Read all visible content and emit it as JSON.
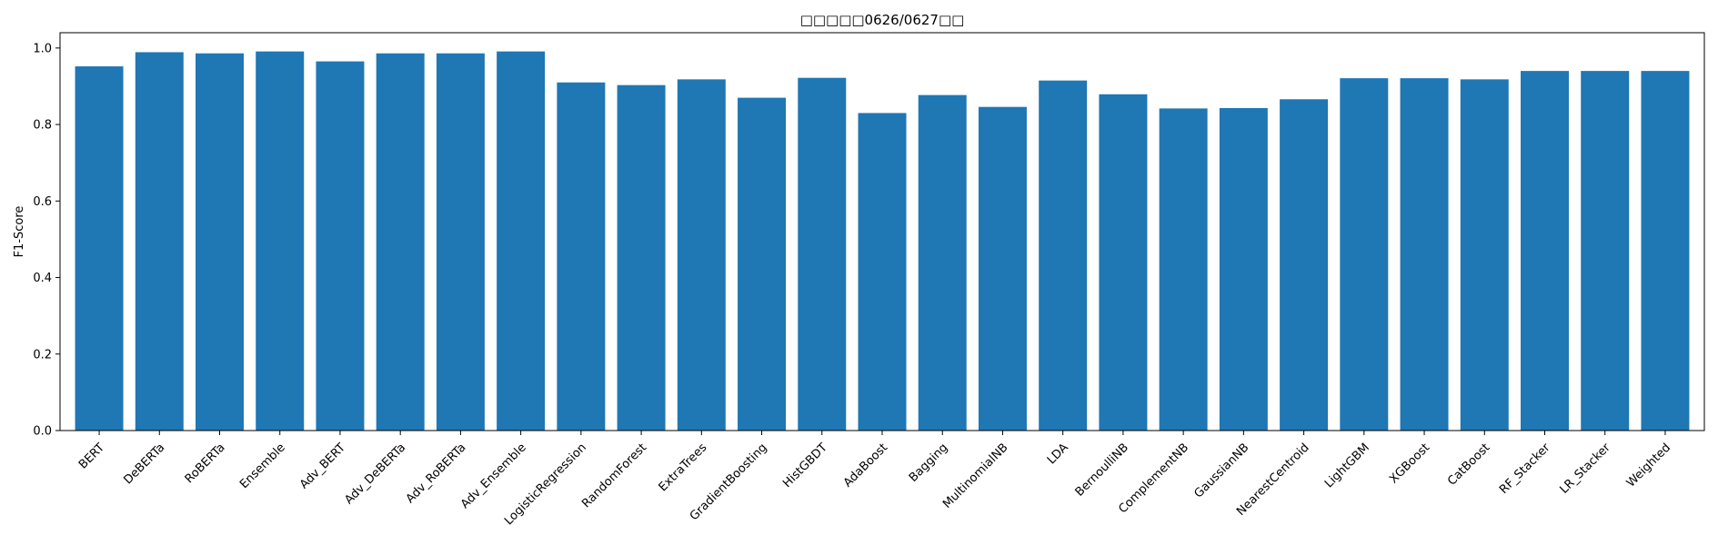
{
  "chart_data": {
    "type": "bar",
    "title": "□□□□□0626/0627□□",
    "xlabel": "",
    "ylabel": "F1-Score",
    "ylim": [
      0,
      1.04
    ],
    "yticks": [
      0.0,
      0.2,
      0.4,
      0.6,
      0.8,
      1.0
    ],
    "ytick_labels": [
      "0.0",
      "0.2",
      "0.4",
      "0.6",
      "0.8",
      "1.0"
    ],
    "grid": false,
    "bar_color": "#1f77b4",
    "categories": [
      "BERT",
      "DeBERTa",
      "RoBERTa",
      "Ensemble",
      "Adv_BERT",
      "Adv_DeBERTa",
      "Adv_RoBERTa",
      "Adv_Ensemble",
      "LogisticRegression",
      "RandomForest",
      "ExtraTrees",
      "GradientBoosting",
      "HistGBDT",
      "AdaBoost",
      "Bagging",
      "MultinomialNB",
      "LDA",
      "BernoulliNB",
      "ComplementNB",
      "GaussianNB",
      "NearestCentroid",
      "LightGBM",
      "XGBoost",
      "CatBoost",
      "RF_Stacker",
      "LR_Stacker",
      "Weighted"
    ],
    "values": [
      0.952,
      0.989,
      0.986,
      0.991,
      0.965,
      0.986,
      0.986,
      0.991,
      0.91,
      0.903,
      0.918,
      0.87,
      0.922,
      0.83,
      0.877,
      0.846,
      0.915,
      0.879,
      0.842,
      0.843,
      0.866,
      0.921,
      0.921,
      0.918,
      0.94,
      0.94,
      0.94
    ]
  }
}
